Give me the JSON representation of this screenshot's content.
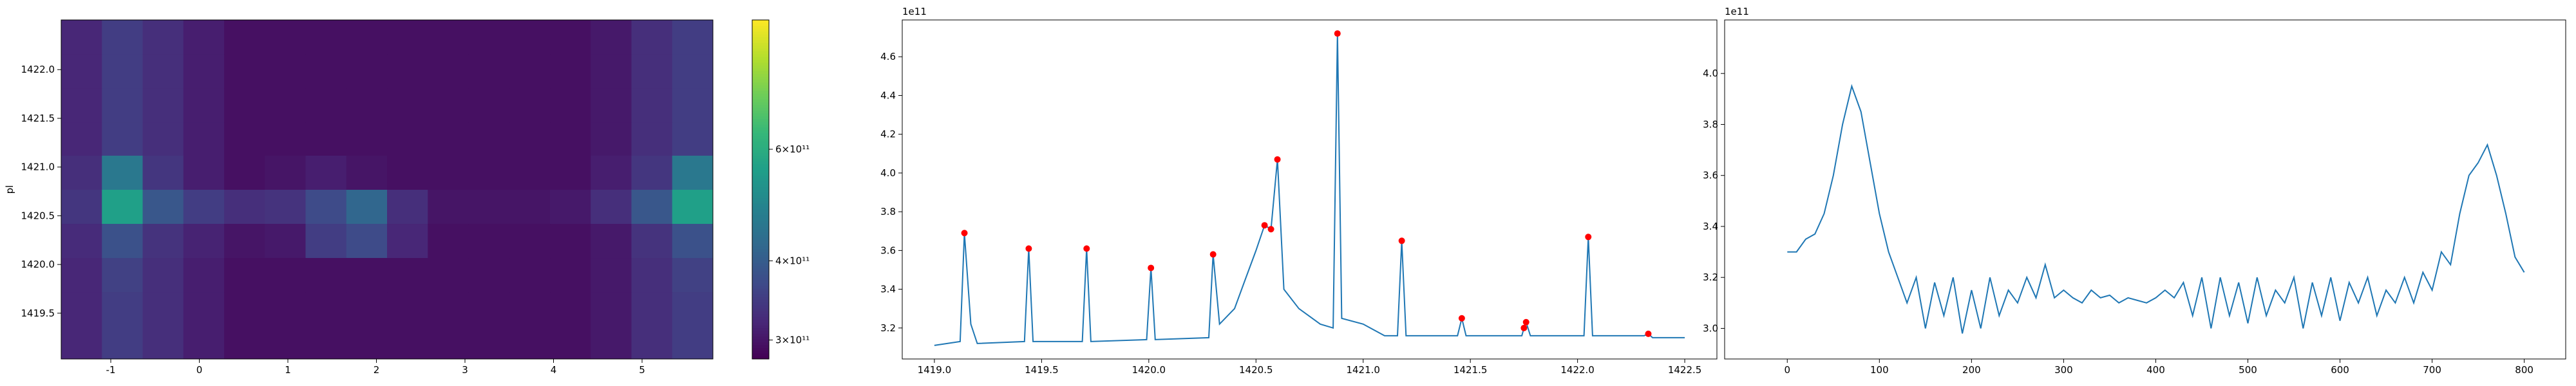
{
  "chart_data": [
    {
      "type": "heatmap",
      "ylabel": "pl",
      "xlim": [
        -1.56,
        5.8
      ],
      "ylim": [
        1419.03,
        1422.51
      ],
      "xticks": [
        -1,
        0,
        1,
        2,
        3,
        4,
        5
      ],
      "yticks": [
        1419.5,
        {
          "value": 1420.0,
          "label": "1420.0"
        },
        1420.5,
        {
          "value": 1421.0,
          "label": "1421.0"
        },
        1421.5,
        {
          "value": 1422.0,
          "label": "1422.0"
        }
      ],
      "xbins": [
        -1.56,
        -1.1,
        -0.64,
        -0.18,
        0.28,
        0.74,
        1.2,
        1.66,
        2.12,
        2.58,
        3.04,
        3.5,
        3.96,
        4.42,
        4.88,
        5.34,
        5.8
      ],
      "ybins": [
        1419.03,
        1419.38,
        1419.72,
        1420.07,
        1420.42,
        1420.77,
        1421.12,
        1421.46,
        1421.81,
        1422.16,
        1422.51
      ],
      "values": [
        [
          320000000000.0,
          350000000000.0,
          330000000000.0,
          310000000000.0,
          295000000000.0,
          295000000000.0,
          295000000000.0,
          295000000000.0,
          295000000000.0,
          295000000000.0,
          295000000000.0,
          295000000000.0,
          295000000000.0,
          305000000000.0,
          330000000000.0,
          350000000000.0
        ],
        [
          320000000000.0,
          350000000000.0,
          330000000000.0,
          310000000000.0,
          295000000000.0,
          295000000000.0,
          295000000000.0,
          295000000000.0,
          295000000000.0,
          295000000000.0,
          295000000000.0,
          295000000000.0,
          295000000000.0,
          305000000000.0,
          330000000000.0,
          350000000000.0
        ],
        [
          320000000000.0,
          355000000000.0,
          330000000000.0,
          310000000000.0,
          295000000000.0,
          295000000000.0,
          295000000000.0,
          295000000000.0,
          295000000000.0,
          295000000000.0,
          295000000000.0,
          295000000000.0,
          295000000000.0,
          305000000000.0,
          330000000000.0,
          355000000000.0
        ],
        [
          325000000000.0,
          380000000000.0,
          335000000000.0,
          315000000000.0,
          300000000000.0,
          305000000000.0,
          350000000000.0,
          370000000000.0,
          320000000000.0,
          295000000000.0,
          295000000000.0,
          295000000000.0,
          295000000000.0,
          305000000000.0,
          335000000000.0,
          380000000000.0
        ],
        [
          340000000000.0,
          560000000000.0,
          390000000000.0,
          350000000000.0,
          330000000000.0,
          335000000000.0,
          370000000000.0,
          420000000000.0,
          330000000000.0,
          300000000000.0,
          300000000000.0,
          300000000000.0,
          305000000000.0,
          330000000000.0,
          390000000000.0,
          560000000000.0
        ],
        [
          330000000000.0,
          460000000000.0,
          340000000000.0,
          310000000000.0,
          295000000000.0,
          300000000000.0,
          310000000000.0,
          300000000000.0,
          295000000000.0,
          295000000000.0,
          295000000000.0,
          295000000000.0,
          295000000000.0,
          310000000000.0,
          340000000000.0,
          460000000000.0
        ],
        [
          320000000000.0,
          350000000000.0,
          330000000000.0,
          310000000000.0,
          295000000000.0,
          295000000000.0,
          295000000000.0,
          295000000000.0,
          295000000000.0,
          295000000000.0,
          295000000000.0,
          295000000000.0,
          295000000000.0,
          305000000000.0,
          330000000000.0,
          350000000000.0
        ],
        [
          320000000000.0,
          350000000000.0,
          330000000000.0,
          310000000000.0,
          295000000000.0,
          295000000000.0,
          295000000000.0,
          295000000000.0,
          295000000000.0,
          295000000000.0,
          295000000000.0,
          295000000000.0,
          295000000000.0,
          305000000000.0,
          330000000000.0,
          350000000000.0
        ],
        [
          320000000000.0,
          350000000000.0,
          330000000000.0,
          310000000000.0,
          295000000000.0,
          295000000000.0,
          295000000000.0,
          295000000000.0,
          295000000000.0,
          295000000000.0,
          295000000000.0,
          295000000000.0,
          295000000000.0,
          305000000000.0,
          330000000000.0,
          350000000000.0
        ],
        [
          320000000000.0,
          350000000000.0,
          330000000000.0,
          310000000000.0,
          295000000000.0,
          295000000000.0,
          295000000000.0,
          295000000000.0,
          295000000000.0,
          295000000000.0,
          295000000000.0,
          295000000000.0,
          295000000000.0,
          305000000000.0,
          330000000000.0,
          350000000000.0
        ]
      ],
      "colorbar": {
        "colormap": "viridis",
        "log": true,
        "clim": [
          280000000000.0,
          960000000000.0
        ],
        "ticks": [
          {
            "value": 300000000000.0,
            "label": "3×10¹¹"
          },
          {
            "value": 400000000000.0,
            "label": "4×10¹¹"
          },
          {
            "value": 600000000000.0,
            "label": "6×10¹¹"
          }
        ]
      }
    },
    {
      "type": "line",
      "offset_text": "1e11",
      "xlim": [
        1418.85,
        1422.65
      ],
      "ylim": [
        304000000000.0,
        479000000000.0
      ],
      "xticks": [
        {
          "value": 1419.0,
          "label": "1419.0"
        },
        1419.5,
        {
          "value": 1420.0,
          "label": "1420.0"
        },
        1420.5,
        {
          "value": 1421.0,
          "label": "1421.0"
        },
        1421.5,
        {
          "value": 1422.0,
          "label": "1422.0"
        },
        1422.5
      ],
      "yticks": [
        {
          "value": 320000000000.0,
          "label": "3.2"
        },
        {
          "value": 340000000000.0,
          "label": "3.4"
        },
        {
          "value": 360000000000.0,
          "label": "3.6"
        },
        {
          "value": 380000000000.0,
          "label": "3.8"
        },
        {
          "value": 400000000000.0,
          "label": "4.0"
        },
        {
          "value": 420000000000.0,
          "label": "4.2"
        },
        {
          "value": 440000000000.0,
          "label": "4.4"
        },
        {
          "value": 460000000000.0,
          "label": "4.6"
        }
      ],
      "series": [
        {
          "color": "#1f77b4",
          "style": "line",
          "x": [
            1419.0,
            1419.12,
            1419.14,
            1419.17,
            1419.2,
            1419.42,
            1419.44,
            1419.46,
            1419.69,
            1419.71,
            1419.73,
            1419.99,
            1420.01,
            1420.03,
            1420.28,
            1420.3,
            1420.33,
            1420.4,
            1420.45,
            1420.5,
            1420.54,
            1420.57,
            1420.6,
            1420.63,
            1420.7,
            1420.8,
            1420.86,
            1420.88,
            1420.9,
            1421.0,
            1421.1,
            1421.16,
            1421.18,
            1421.2,
            1421.44,
            1421.46,
            1421.48,
            1421.74,
            1421.75,
            1421.76,
            1421.78,
            1422.03,
            1422.05,
            1422.07,
            1422.31,
            1422.33,
            1422.35,
            1422.5
          ],
          "values": [
            311000000000.0,
            313000000000.0,
            369000000000.0,
            322000000000.0,
            312000000000.0,
            313000000000.0,
            361000000000.0,
            313000000000.0,
            313000000000.0,
            361000000000.0,
            313000000000.0,
            314000000000.0,
            351000000000.0,
            314000000000.0,
            315000000000.0,
            358000000000.0,
            322000000000.0,
            330000000000.0,
            345000000000.0,
            360000000000.0,
            373000000000.0,
            371000000000.0,
            407000000000.0,
            340000000000.0,
            330000000000.0,
            322000000000.0,
            320000000000.0,
            472000000000.0,
            325000000000.0,
            322000000000.0,
            316000000000.0,
            316000000000.0,
            365000000000.0,
            316000000000.0,
            316000000000.0,
            325000000000.0,
            316000000000.0,
            316000000000.0,
            320000000000.0,
            323000000000.0,
            316000000000.0,
            316000000000.0,
            367000000000.0,
            316000000000.0,
            316000000000.0,
            317000000000.0,
            315000000000.0,
            315000000000.0
          ]
        },
        {
          "color": "#ff0000",
          "style": "markers",
          "x": [
            1419.14,
            1419.44,
            1419.71,
            1420.01,
            1420.3,
            1420.54,
            1420.57,
            1420.6,
            1420.88,
            1421.18,
            1421.46,
            1421.75,
            1421.76,
            1422.05,
            1422.33
          ],
          "values": [
            369000000000.0,
            361000000000.0,
            361000000000.0,
            351000000000.0,
            358000000000.0,
            373000000000.0,
            371000000000.0,
            407000000000.0,
            472000000000.0,
            365000000000.0,
            325000000000.0,
            320000000000.0,
            323000000000.0,
            367000000000.0,
            317000000000.0
          ]
        }
      ]
    },
    {
      "type": "line",
      "offset_text": "1e11",
      "xlim": [
        -68,
        845
      ],
      "ylim": [
        288000000000.0,
        421000000000.0
      ],
      "xticks": [
        0,
        100,
        200,
        300,
        400,
        500,
        600,
        700,
        800
      ],
      "yticks": [
        {
          "value": 300000000000.0,
          "label": "3.0"
        },
        {
          "value": 320000000000.0,
          "label": "3.2"
        },
        {
          "value": 340000000000.0,
          "label": "3.4"
        },
        {
          "value": 360000000000.0,
          "label": "3.6"
        },
        {
          "value": 380000000000.0,
          "label": "3.8"
        },
        {
          "value": 400000000000.0,
          "label": "4.0"
        }
      ],
      "series": [
        {
          "color": "#1f77b4",
          "style": "line",
          "x": [
            0,
            10,
            20,
            30,
            40,
            50,
            60,
            70,
            80,
            90,
            100,
            110,
            120,
            130,
            140,
            150,
            160,
            170,
            180,
            190,
            200,
            210,
            220,
            230,
            240,
            250,
            260,
            270,
            280,
            290,
            300,
            310,
            320,
            330,
            340,
            350,
            360,
            370,
            380,
            390,
            400,
            410,
            420,
            430,
            440,
            450,
            460,
            470,
            480,
            490,
            500,
            510,
            520,
            530,
            540,
            550,
            560,
            570,
            580,
            590,
            600,
            610,
            620,
            630,
            640,
            650,
            660,
            670,
            680,
            690,
            700,
            710,
            720,
            730,
            740,
            750,
            760,
            770,
            780,
            790,
            800
          ],
          "values": [
            330000000000.0,
            330000000000.0,
            335000000000.0,
            337000000000.0,
            345000000000.0,
            360000000000.0,
            380000000000.0,
            395000000000.0,
            385000000000.0,
            365000000000.0,
            345000000000.0,
            330000000000.0,
            320000000000.0,
            310000000000.0,
            320000000000.0,
            300000000000.0,
            318000000000.0,
            305000000000.0,
            320000000000.0,
            298000000000.0,
            315000000000.0,
            300000000000.0,
            320000000000.0,
            305000000000.0,
            315000000000.0,
            310000000000.0,
            320000000000.0,
            312000000000.0,
            325000000000.0,
            312000000000.0,
            315000000000.0,
            312000000000.0,
            310000000000.0,
            315000000000.0,
            312000000000.0,
            313000000000.0,
            310000000000.0,
            312000000000.0,
            311000000000.0,
            310000000000.0,
            312000000000.0,
            315000000000.0,
            312000000000.0,
            318000000000.0,
            305000000000.0,
            320000000000.0,
            300000000000.0,
            320000000000.0,
            305000000000.0,
            318000000000.0,
            302000000000.0,
            320000000000.0,
            305000000000.0,
            315000000000.0,
            310000000000.0,
            320000000000.0,
            300000000000.0,
            318000000000.0,
            305000000000.0,
            320000000000.0,
            303000000000.0,
            318000000000.0,
            310000000000.0,
            320000000000.0,
            305000000000.0,
            315000000000.0,
            310000000000.0,
            320000000000.0,
            310000000000.0,
            322000000000.0,
            315000000000.0,
            330000000000.0,
            325000000000.0,
            345000000000.0,
            360000000000.0,
            365000000000.0,
            372000000000.0,
            360000000000.0,
            345000000000.0,
            328000000000.0,
            322000000000.0
          ]
        }
      ]
    }
  ]
}
